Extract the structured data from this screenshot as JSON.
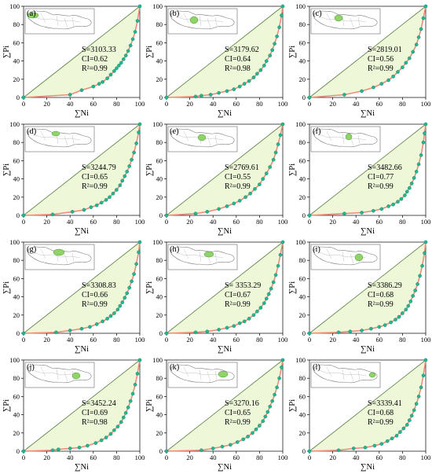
{
  "chart_data": [
    {
      "type": "scatter",
      "panel": "(a)",
      "xlabel": "∑Ni",
      "ylabel": "∑Pi",
      "xlim": [
        0,
        100
      ],
      "ylim": [
        0,
        100
      ],
      "x_ticks": [
        "0",
        "20",
        "40",
        "60",
        "80",
        "100"
      ],
      "y_ticks": [
        "0",
        "20",
        "40",
        "60",
        "80",
        "100"
      ],
      "stats": {
        "S": "S=3103.33",
        "CI": "CI=0.62",
        "R2": "R²=0.99"
      },
      "points": [
        [
          0,
          0
        ],
        [
          40,
          3
        ],
        [
          50,
          8
        ],
        [
          60,
          12
        ],
        [
          65,
          15
        ],
        [
          68,
          17
        ],
        [
          72,
          21
        ],
        [
          75,
          25
        ],
        [
          78,
          29
        ],
        [
          80,
          32
        ],
        [
          82,
          35
        ],
        [
          84,
          38
        ],
        [
          86,
          42
        ],
        [
          88,
          46
        ],
        [
          90,
          51
        ],
        [
          92,
          57
        ],
        [
          94,
          64
        ],
        [
          96,
          72
        ],
        [
          98,
          84
        ],
        [
          100,
          100
        ]
      ]
    },
    {
      "type": "scatter",
      "panel": "(b)",
      "xlabel": "∑Ni",
      "ylabel": "∑Pi",
      "xlim": [
        0,
        100
      ],
      "ylim": [
        0,
        100
      ],
      "x_ticks": [
        "0",
        "20",
        "40",
        "60",
        "80",
        "100"
      ],
      "y_ticks": [
        "0",
        "20",
        "40",
        "60",
        "80",
        "100"
      ],
      "stats": {
        "S": "S=3179.62",
        "CI": "CI=0.64",
        "R2": "R²=0.98"
      },
      "points": [
        [
          0,
          0
        ],
        [
          25,
          1
        ],
        [
          30,
          2
        ],
        [
          38,
          3
        ],
        [
          45,
          5
        ],
        [
          52,
          7
        ],
        [
          58,
          9
        ],
        [
          63,
          12
        ],
        [
          67,
          15
        ],
        [
          71,
          18
        ],
        [
          75,
          22
        ],
        [
          78,
          26
        ],
        [
          81,
          30
        ],
        [
          84,
          35
        ],
        [
          86,
          40
        ],
        [
          89,
          46
        ],
        [
          91,
          52
        ],
        [
          93,
          59
        ],
        [
          95,
          67
        ],
        [
          97,
          77
        ],
        [
          99,
          90
        ],
        [
          100,
          100
        ]
      ]
    },
    {
      "type": "scatter",
      "panel": "(c)",
      "xlabel": "∑Ni",
      "ylabel": "∑Pi",
      "xlim": [
        0,
        100
      ],
      "ylim": [
        0,
        100
      ],
      "x_ticks": [
        "0",
        "20",
        "40",
        "60",
        "80",
        "100"
      ],
      "y_ticks": [
        "0",
        "20",
        "40",
        "60",
        "80",
        "100"
      ],
      "stats": {
        "S": "S=2819.01",
        "CI": "CI=0.56",
        "R2": "R²=0.99"
      },
      "points": [
        [
          0,
          0
        ],
        [
          30,
          3
        ],
        [
          45,
          7
        ],
        [
          55,
          11
        ],
        [
          62,
          15
        ],
        [
          68,
          19
        ],
        [
          72,
          23
        ],
        [
          76,
          28
        ],
        [
          80,
          33
        ],
        [
          83,
          38
        ],
        [
          86,
          43
        ],
        [
          89,
          50
        ],
        [
          92,
          58
        ],
        [
          94,
          66
        ],
        [
          96,
          75
        ],
        [
          98,
          87
        ],
        [
          100,
          100
        ]
      ]
    },
    {
      "type": "scatter",
      "panel": "(d)",
      "xlabel": "∑Ni",
      "ylabel": "∑Pi",
      "xlim": [
        0,
        100
      ],
      "ylim": [
        0,
        100
      ],
      "x_ticks": [
        "0",
        "20",
        "40",
        "60",
        "80",
        "100"
      ],
      "y_ticks": [
        "0",
        "20",
        "40",
        "60",
        "80",
        "100"
      ],
      "stats": {
        "S": "S=3244.79",
        "CI": "CI=0.65",
        "R2": "R²=0.99"
      },
      "points": [
        [
          0,
          0
        ],
        [
          25,
          1
        ],
        [
          42,
          4
        ],
        [
          52,
          6
        ],
        [
          58,
          9
        ],
        [
          63,
          11
        ],
        [
          67,
          14
        ],
        [
          71,
          17
        ],
        [
          74,
          20
        ],
        [
          77,
          24
        ],
        [
          80,
          28
        ],
        [
          83,
          33
        ],
        [
          85,
          38
        ],
        [
          87,
          43
        ],
        [
          89,
          48
        ],
        [
          91,
          54
        ],
        [
          93,
          61
        ],
        [
          95,
          69
        ],
        [
          97,
          79
        ],
        [
          99,
          91
        ],
        [
          100,
          100
        ]
      ]
    },
    {
      "type": "scatter",
      "panel": "(e)",
      "xlabel": "∑Ni",
      "ylabel": "∑Pi",
      "xlim": [
        0,
        100
      ],
      "ylim": [
        0,
        100
      ],
      "x_ticks": [
        "0",
        "20",
        "40",
        "60",
        "80",
        "100"
      ],
      "y_ticks": [
        "0",
        "20",
        "40",
        "60",
        "80",
        "100"
      ],
      "stats": {
        "S": "S=2769.61",
        "CI": "CI=0.55",
        "R2": "R²=0.99"
      },
      "points": [
        [
          0,
          0
        ],
        [
          25,
          2
        ],
        [
          35,
          4
        ],
        [
          45,
          7
        ],
        [
          52,
          10
        ],
        [
          58,
          13
        ],
        [
          63,
          16
        ],
        [
          68,
          20
        ],
        [
          72,
          24
        ],
        [
          76,
          29
        ],
        [
          80,
          34
        ],
        [
          83,
          40
        ],
        [
          86,
          46
        ],
        [
          89,
          53
        ],
        [
          92,
          61
        ],
        [
          94,
          69
        ],
        [
          96,
          78
        ],
        [
          98,
          88
        ],
        [
          100,
          100
        ]
      ]
    },
    {
      "type": "scatter",
      "panel": "(f)",
      "xlabel": "∑Ni",
      "ylabel": "∑Pi",
      "xlim": [
        0,
        100
      ],
      "ylim": [
        0,
        100
      ],
      "x_ticks": [
        "0",
        "20",
        "40",
        "60",
        "80",
        "100"
      ],
      "y_ticks": [
        "0",
        "20",
        "40",
        "60",
        "80",
        "100"
      ],
      "stats": {
        "S": "S=3482.66",
        "CI": "CI=0.77",
        "R2": "R²=0.99"
      },
      "points": [
        [
          0,
          0
        ],
        [
          30,
          2
        ],
        [
          45,
          3
        ],
        [
          55,
          5
        ],
        [
          62,
          7
        ],
        [
          68,
          10
        ],
        [
          72,
          12
        ],
        [
          76,
          15
        ],
        [
          79,
          18
        ],
        [
          82,
          22
        ],
        [
          84,
          26
        ],
        [
          86,
          30
        ],
        [
          88,
          35
        ],
        [
          90,
          41
        ],
        [
          92,
          48
        ],
        [
          94,
          56
        ],
        [
          96,
          66
        ],
        [
          98,
          80
        ],
        [
          99,
          90
        ],
        [
          100,
          100
        ]
      ]
    },
    {
      "type": "scatter",
      "panel": "(g)",
      "xlabel": "∑Ni",
      "ylabel": "∑Pi",
      "xlim": [
        0,
        100
      ],
      "ylim": [
        0,
        100
      ],
      "x_ticks": [
        "0",
        "20",
        "40",
        "60",
        "80",
        "100"
      ],
      "y_ticks": [
        "0",
        "20",
        "40",
        "60",
        "80",
        "100"
      ],
      "stats": {
        "S": "S=3308.83",
        "CI": "CI=0.66",
        "R2": "R²=0.99"
      },
      "points": [
        [
          0,
          0
        ],
        [
          28,
          1
        ],
        [
          40,
          3
        ],
        [
          50,
          5
        ],
        [
          57,
          7
        ],
        [
          63,
          10
        ],
        [
          68,
          13
        ],
        [
          72,
          16
        ],
        [
          75,
          19
        ],
        [
          78,
          22
        ],
        [
          81,
          26
        ],
        [
          83,
          30
        ],
        [
          85,
          34
        ],
        [
          87,
          39
        ],
        [
          89,
          44
        ],
        [
          91,
          50
        ],
        [
          93,
          57
        ],
        [
          95,
          65
        ],
        [
          97,
          76
        ],
        [
          99,
          89
        ],
        [
          100,
          100
        ]
      ]
    },
    {
      "type": "scatter",
      "panel": "(h)",
      "xlabel": "∑Ni",
      "ylabel": "∑Pi",
      "xlim": [
        0,
        100
      ],
      "ylim": [
        0,
        100
      ],
      "x_ticks": [
        "0",
        "20",
        "40",
        "60",
        "80",
        "100"
      ],
      "y_ticks": [
        "0",
        "20",
        "40",
        "60",
        "80",
        "100"
      ],
      "stats": {
        "S": "S= 3353.29",
        "CI": "CI=0.67",
        "R2": "R²=0.99"
      },
      "points": [
        [
          0,
          0
        ],
        [
          25,
          1
        ],
        [
          35,
          2
        ],
        [
          45,
          4
        ],
        [
          52,
          6
        ],
        [
          58,
          8
        ],
        [
          63,
          11
        ],
        [
          67,
          13
        ],
        [
          71,
          16
        ],
        [
          75,
          20
        ],
        [
          78,
          24
        ],
        [
          81,
          28
        ],
        [
          84,
          33
        ],
        [
          86,
          38
        ],
        [
          88,
          43
        ],
        [
          90,
          49
        ],
        [
          92,
          56
        ],
        [
          94,
          64
        ],
        [
          96,
          74
        ],
        [
          98,
          86
        ],
        [
          100,
          100
        ]
      ]
    },
    {
      "type": "scatter",
      "panel": "(i)",
      "xlabel": "∑Ni",
      "ylabel": "∑Pi",
      "xlim": [
        0,
        100
      ],
      "ylim": [
        0,
        100
      ],
      "x_ticks": [
        "0",
        "20",
        "40",
        "60",
        "80",
        "100"
      ],
      "y_ticks": [
        "0",
        "20",
        "40",
        "60",
        "80",
        "100"
      ],
      "stats": {
        "S": "S=3386.29",
        "CI": "CI=0.68",
        "R2": "R²=0.99"
      },
      "points": [
        [
          0,
          0
        ],
        [
          25,
          1
        ],
        [
          35,
          2
        ],
        [
          45,
          3
        ],
        [
          53,
          5
        ],
        [
          60,
          7
        ],
        [
          65,
          9
        ],
        [
          70,
          12
        ],
        [
          74,
          15
        ],
        [
          77,
          18
        ],
        [
          80,
          22
        ],
        [
          83,
          26
        ],
        [
          85,
          30
        ],
        [
          87,
          35
        ],
        [
          89,
          41
        ],
        [
          91,
          47
        ],
        [
          93,
          54
        ],
        [
          95,
          63
        ],
        [
          97,
          74
        ],
        [
          99,
          88
        ],
        [
          100,
          100
        ]
      ]
    },
    {
      "type": "scatter",
      "panel": "(j)",
      "xlabel": "∑Ni",
      "ylabel": "∑Pi",
      "xlim": [
        0,
        100
      ],
      "ylim": [
        0,
        100
      ],
      "x_ticks": [
        "0",
        "20",
        "40",
        "60",
        "80",
        "100"
      ],
      "y_ticks": [
        "0",
        "20",
        "40",
        "60",
        "80",
        "100"
      ],
      "stats": {
        "S": "S=3452.24",
        "CI": "CI=0.69",
        "R2": "R²=0.98"
      },
      "points": [
        [
          0,
          0
        ],
        [
          25,
          1
        ],
        [
          30,
          2
        ],
        [
          40,
          3
        ],
        [
          48,
          4
        ],
        [
          55,
          6
        ],
        [
          62,
          9
        ],
        [
          67,
          12
        ],
        [
          71,
          15
        ],
        [
          75,
          19
        ],
        [
          78,
          23
        ],
        [
          81,
          27
        ],
        [
          84,
          32
        ],
        [
          86,
          37
        ],
        [
          88,
          42
        ],
        [
          90,
          48
        ],
        [
          92,
          55
        ],
        [
          94,
          63
        ],
        [
          96,
          73
        ],
        [
          98,
          85
        ],
        [
          100,
          100
        ]
      ]
    },
    {
      "type": "scatter",
      "panel": "(k)",
      "xlabel": "∑Ni",
      "ylabel": "∑Pi",
      "xlim": [
        0,
        100
      ],
      "ylim": [
        0,
        100
      ],
      "x_ticks": [
        "0",
        "20",
        "40",
        "60",
        "80",
        "100"
      ],
      "y_ticks": [
        "0",
        "20",
        "40",
        "60",
        "80",
        "100"
      ],
      "stats": {
        "S": "S=3270.16",
        "CI": "CI=0.65",
        "R2": "R²=0.99"
      },
      "points": [
        [
          0,
          0
        ],
        [
          30,
          1
        ],
        [
          40,
          3
        ],
        [
          48,
          5
        ],
        [
          55,
          7
        ],
        [
          61,
          10
        ],
        [
          66,
          13
        ],
        [
          70,
          16
        ],
        [
          74,
          20
        ],
        [
          77,
          24
        ],
        [
          80,
          28
        ],
        [
          83,
          33
        ],
        [
          85,
          38
        ],
        [
          87,
          43
        ],
        [
          89,
          49
        ],
        [
          91,
          55
        ],
        [
          93,
          62
        ],
        [
          95,
          70
        ],
        [
          97,
          80
        ],
        [
          99,
          92
        ],
        [
          100,
          100
        ]
      ]
    },
    {
      "type": "scatter",
      "panel": "(l)",
      "xlabel": "∑Ni",
      "ylabel": "∑Pi",
      "xlim": [
        0,
        100
      ],
      "ylim": [
        0,
        100
      ],
      "x_ticks": [
        "0",
        "20",
        "40",
        "60",
        "80",
        "100"
      ],
      "y_ticks": [
        "0",
        "20",
        "40",
        "60",
        "80",
        "100"
      ],
      "stats": {
        "S": "S=3339.41",
        "CI": "CI=0.68",
        "R2": "R²=0.99"
      },
      "points": [
        [
          0,
          0
        ],
        [
          25,
          1
        ],
        [
          38,
          3
        ],
        [
          48,
          4
        ],
        [
          56,
          6
        ],
        [
          62,
          8
        ],
        [
          67,
          11
        ],
        [
          71,
          14
        ],
        [
          75,
          17
        ],
        [
          78,
          21
        ],
        [
          81,
          25
        ],
        [
          84,
          29
        ],
        [
          86,
          34
        ],
        [
          88,
          39
        ],
        [
          90,
          45
        ],
        [
          92,
          52
        ],
        [
          94,
          60
        ],
        [
          96,
          70
        ],
        [
          98,
          83
        ],
        [
          100,
          100
        ]
      ]
    }
  ],
  "colors": {
    "fill": "#eef8d8",
    "diagonal": "#5a7f43",
    "curve": "#f08a78",
    "point": "#1fb891",
    "point_stroke": "#0c7c5e",
    "axis": "#000000",
    "map_region": "#8fd36a"
  }
}
